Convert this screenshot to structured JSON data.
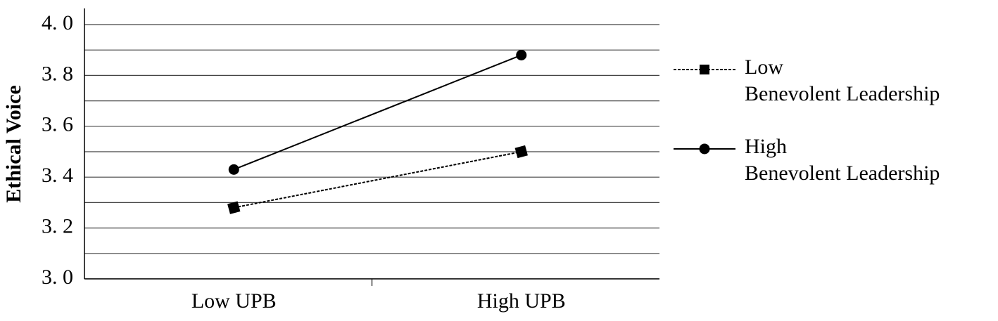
{
  "chart_data": {
    "type": "line",
    "y_label": "Ethical Voice",
    "categories": [
      "Low UPB",
      "High UPB"
    ],
    "series": [
      {
        "name": "Low\nBenevolent Leadership",
        "color": "#000000",
        "line_style": "dotted",
        "marker": "square",
        "values": [
          3.28,
          3.5
        ]
      },
      {
        "name": "High\nBenevolent Leadership",
        "color": "#000000",
        "line_style": "solid",
        "marker": "circle",
        "values": [
          3.43,
          3.88
        ]
      }
    ],
    "ylim": [
      3.0,
      4.0
    ],
    "yticks": [
      {
        "value": 3.0,
        "label": "3. 0"
      },
      {
        "value": 3.2,
        "label": "3. 2"
      },
      {
        "value": 3.4,
        "label": "3. 4"
      },
      {
        "value": 3.6,
        "label": "3. 6"
      },
      {
        "value": 3.8,
        "label": "3. 8"
      },
      {
        "value": 4.0,
        "label": "4. 0"
      }
    ],
    "minor_yticks": [
      3.1,
      3.3,
      3.5,
      3.7,
      3.9
    ],
    "grid": true,
    "legend": "right"
  }
}
